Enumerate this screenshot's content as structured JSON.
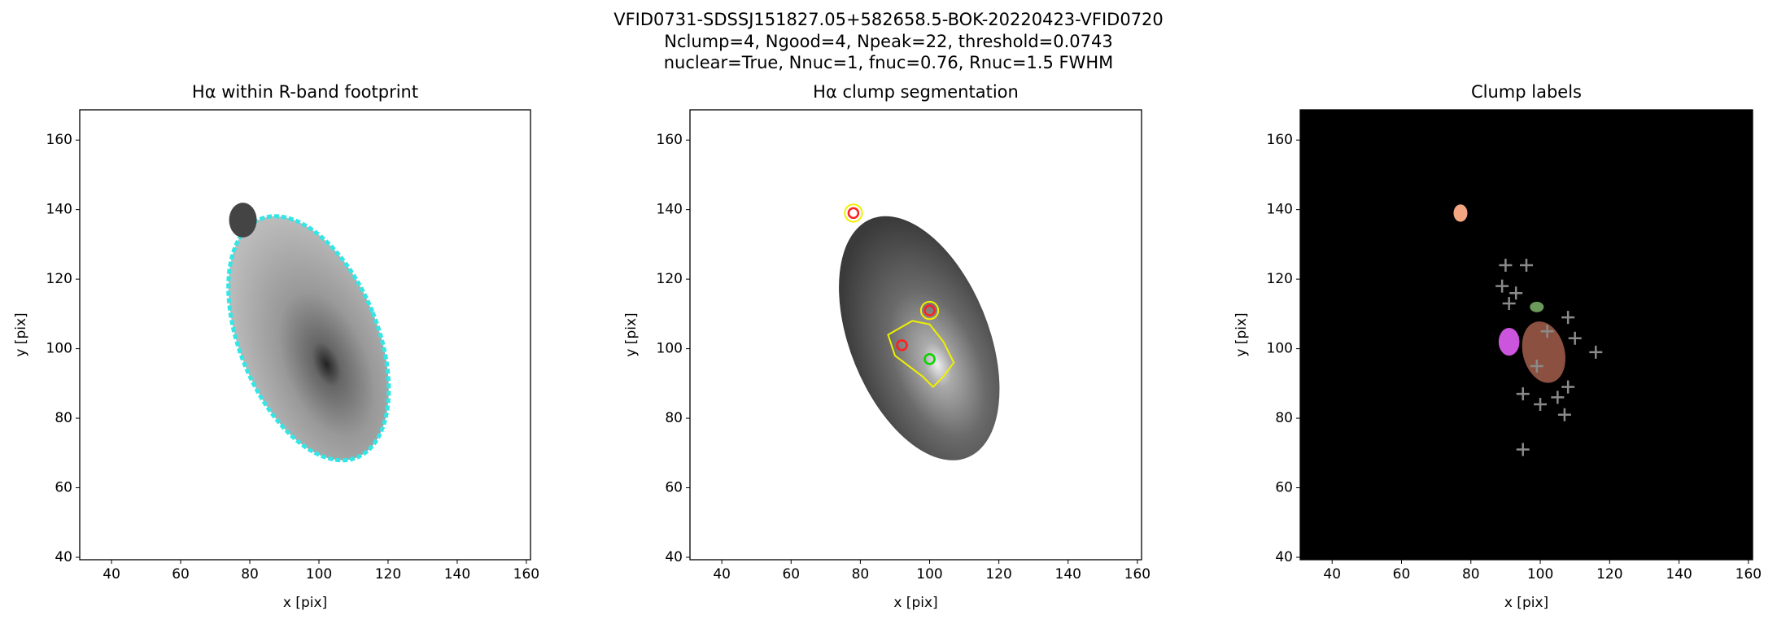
{
  "suptitle": [
    "VFID0731-SDSSJ151827.05+582658.5-BOK-20220423-VFID0720",
    "Nclump=4, Ngood=4, Npeak=22, threshold=0.0743",
    "nuclear=True, Nnuc=1, fnuc=0.76, Rnuc=1.5 FWHM"
  ],
  "chart_data": [
    {
      "type": "image",
      "title": "Hα within R-band footprint",
      "x_label": "x [pix]",
      "y_label": "y [pix]",
      "xlim": [
        30.8,
        161.2
      ],
      "ylim": [
        39.3,
        168.7
      ],
      "xticks": [
        40,
        60,
        80,
        100,
        120,
        140,
        160
      ],
      "yticks": [
        40,
        60,
        80,
        100,
        120,
        140,
        160
      ],
      "background": "#ffffff"
    },
    {
      "type": "image",
      "title": "Hα clump segmentation",
      "x_label": "x [pix]",
      "y_label": "y [pix]",
      "xlim": [
        30.8,
        161.2
      ],
      "ylim": [
        39.3,
        168.7
      ],
      "xticks": [
        40,
        60,
        80,
        100,
        120,
        140,
        160
      ],
      "yticks": [
        40,
        60,
        80,
        100,
        120,
        140,
        160
      ],
      "background": "#ffffff",
      "markers": [
        {
          "marker": "circle",
          "color": "#ff2020",
          "x": [
            78,
            100,
            92,
            100
          ],
          "y": [
            139,
            111,
            101,
            97
          ]
        },
        {
          "marker": "circle",
          "color": "#00dd00",
          "x": [
            100
          ],
          "y": [
            97
          ]
        }
      ]
    },
    {
      "type": "image",
      "title": "Clump labels",
      "x_label": "x [pix]",
      "y_label": "y [pix]",
      "xlim": [
        30.8,
        161.2
      ],
      "ylim": [
        39.3,
        168.7
      ],
      "xticks": [
        40,
        60,
        80,
        100,
        120,
        140,
        160
      ],
      "yticks": [
        40,
        60,
        80,
        100,
        120,
        140,
        160
      ],
      "background": "#000000",
      "markers": [
        {
          "marker": "plus",
          "color": "#8a8a8a",
          "x": [
            90,
            96,
            89,
            93,
            91,
            108,
            110,
            116,
            102,
            99,
            108,
            95,
            105,
            100,
            107,
            95
          ],
          "y": [
            124,
            124,
            118,
            116,
            113,
            109,
            103,
            99,
            105,
            95,
            89,
            87,
            86,
            84,
            81,
            71
          ]
        }
      ]
    }
  ]
}
